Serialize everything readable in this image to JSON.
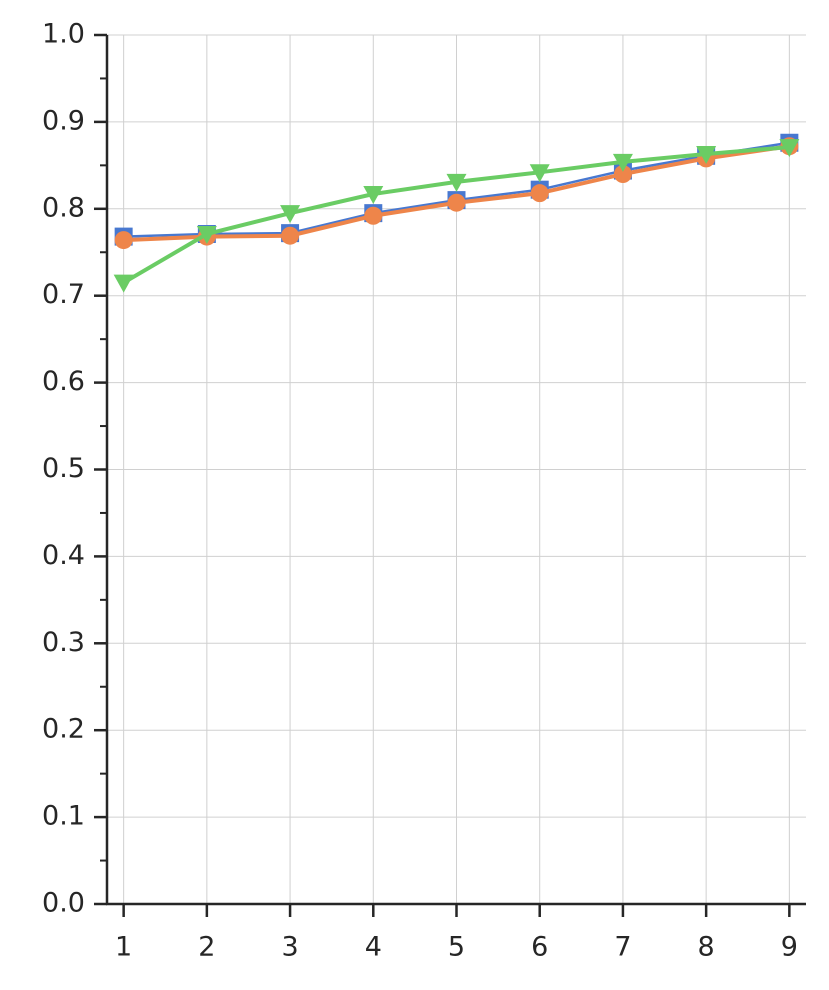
{
  "chart_data": {
    "type": "line",
    "x": [
      1,
      2,
      3,
      4,
      5,
      6,
      7,
      8,
      9
    ],
    "series": [
      {
        "color": "#4878d0",
        "marker": "square",
        "values": [
          0.768,
          0.771,
          0.772,
          0.795,
          0.81,
          0.822,
          0.844,
          0.861,
          0.876
        ]
      },
      {
        "color": "#ee854a",
        "marker": "circle",
        "values": [
          0.764,
          0.768,
          0.769,
          0.792,
          0.807,
          0.818,
          0.84,
          0.858,
          0.872
        ]
      },
      {
        "color": "#6acc64",
        "marker": "triangle-down",
        "values": [
          0.715,
          0.771,
          0.795,
          0.817,
          0.831,
          0.842,
          0.854,
          0.863,
          0.871
        ]
      }
    ],
    "xlim": [
      0.8,
      9.2
    ],
    "xticks": [
      1,
      2,
      3,
      4,
      5,
      6,
      7,
      8,
      9
    ],
    "ylim": [
      0,
      1
    ],
    "yticks": [
      {
        "value": 0,
        "label": "0.0"
      },
      0.1,
      0.2,
      0.3,
      0.4,
      0.5,
      0.6,
      0.7,
      0.8,
      0.9,
      {
        "value": 1,
        "label": "1.0"
      }
    ],
    "y_minor_ticks": [
      0.05,
      0.15,
      0.25,
      0.35,
      0.45,
      0.55,
      0.65,
      0.75,
      0.85,
      0.95
    ],
    "grid": true
  }
}
